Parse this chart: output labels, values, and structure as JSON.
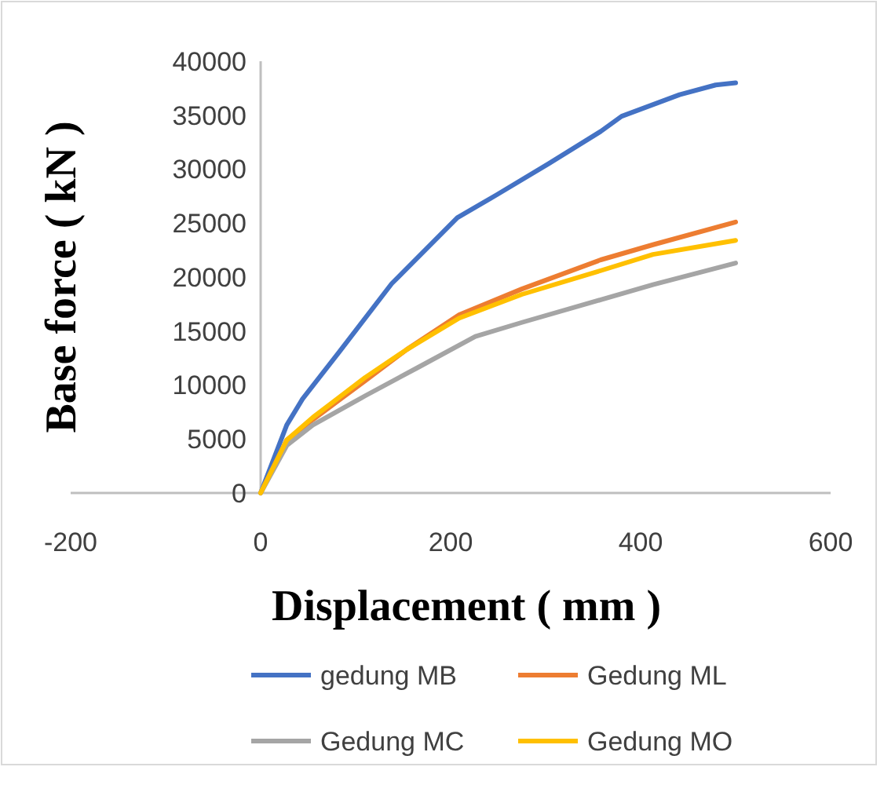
{
  "chart_data": {
    "type": "line",
    "xlabel": "Displacement ( mm )",
    "ylabel": "Base force ( kN )",
    "xlim": [
      -200,
      600
    ],
    "xticks": [
      -200,
      0,
      200,
      400,
      600
    ],
    "ylim": [
      0,
      40000
    ],
    "yticks": [
      0,
      5000,
      10000,
      15000,
      20000,
      25000,
      30000,
      35000,
      40000
    ],
    "grid": false,
    "legend": "bottom",
    "marker": "none",
    "line_style": "solid",
    "series": [
      {
        "name": "gedung MB",
        "color": "#4472c4",
        "x": [
          0,
          27.5,
          44,
          83,
          138,
          207,
          248,
          303,
          358,
          380,
          441,
          479,
          500
        ],
        "values": [
          0,
          6300,
          8700,
          13100,
          19400,
          25500,
          27600,
          30500,
          33500,
          34900,
          36900,
          37800,
          38000
        ]
      },
      {
        "name": "Gedung ML",
        "color": "#ed7d31",
        "x": [
          0,
          27.5,
          55,
          110,
          154,
          209,
          275,
          358,
          413,
          500
        ],
        "values": [
          0,
          4900,
          6800,
          10400,
          13300,
          16500,
          18900,
          21600,
          23000,
          25100
        ]
      },
      {
        "name": "Gedung MC",
        "color": "#a5a5a5",
        "x": [
          0,
          27.5,
          55,
          110,
          165,
          226,
          275,
          358,
          413,
          500
        ],
        "values": [
          0,
          4400,
          6300,
          9000,
          11600,
          14500,
          15800,
          17900,
          19300,
          21300
        ]
      },
      {
        "name": "Gedung MO",
        "color": "#ffc000",
        "x": [
          0,
          27.5,
          55,
          110,
          154,
          209,
          275,
          358,
          413,
          500
        ],
        "values": [
          0,
          4900,
          7000,
          10700,
          13300,
          16200,
          18400,
          20600,
          22100,
          23400
        ]
      }
    ]
  }
}
